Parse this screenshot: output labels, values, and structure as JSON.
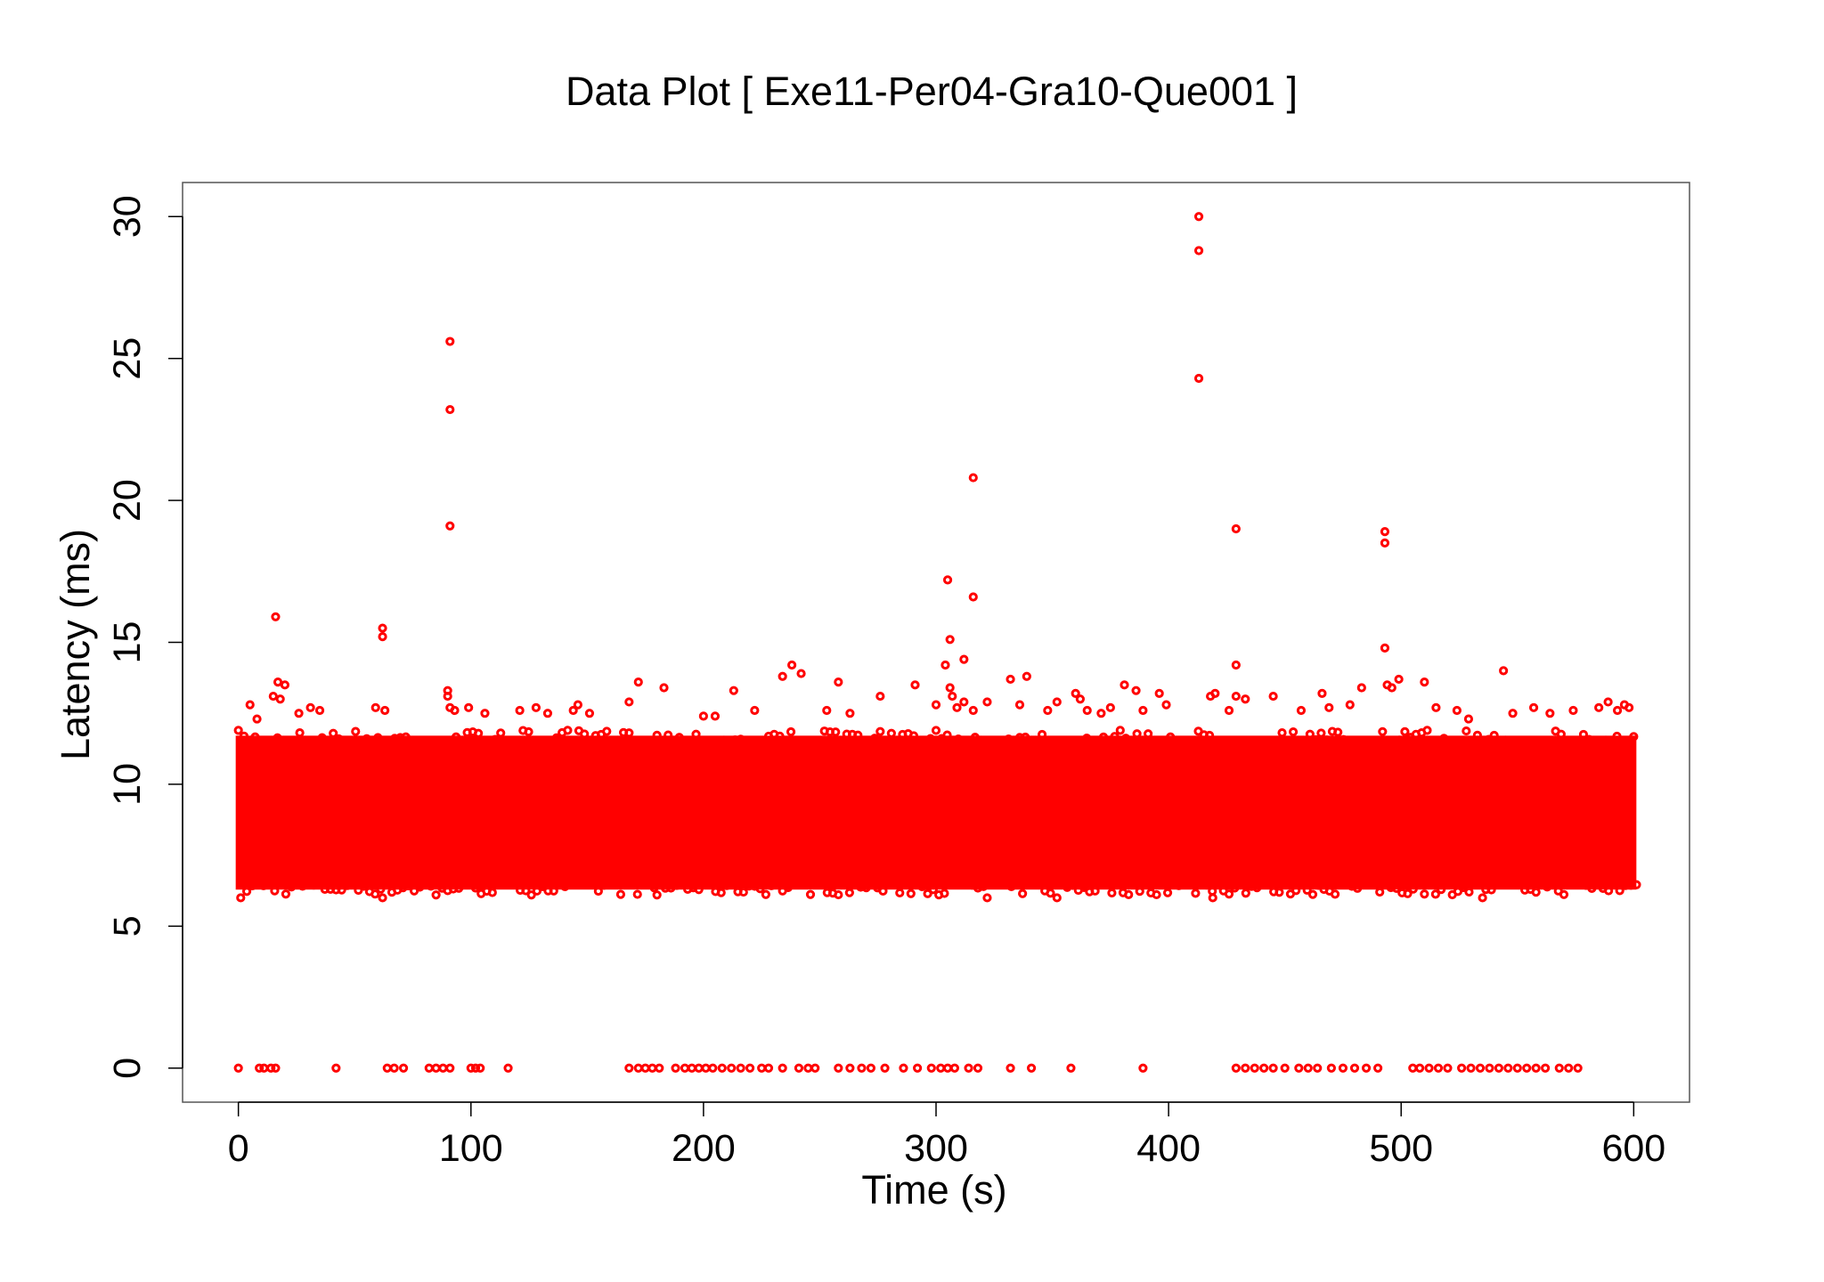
{
  "chart_data": {
    "type": "scatter",
    "title": "Data Plot [ Exe11-Per04-Gra10-Que001 ]",
    "xlabel": "Time (s)",
    "ylabel": "Latency (ms)",
    "xlim": [
      -24,
      624
    ],
    "ylim": [
      -1.2,
      31.2
    ],
    "xticks": [
      0,
      100,
      200,
      300,
      400,
      500,
      600
    ],
    "yticks": [
      0,
      5,
      10,
      15,
      20,
      25,
      30
    ],
    "xtick_labels": [
      "0",
      "100",
      "200",
      "300",
      "400",
      "500",
      "600"
    ],
    "ytick_labels": [
      "0",
      "5",
      "10",
      "15",
      "20",
      "25",
      "30"
    ],
    "grid": false,
    "marker": "open-circle",
    "color": "#ff0000",
    "dense_band": {
      "x_range": [
        0,
        600
      ],
      "y_range": [
        6.1,
        11.9
      ],
      "description": "continuous dense cluster of points"
    },
    "series": [
      {
        "points": [
          [
            0,
            0
          ],
          [
            9,
            0
          ],
          [
            11,
            0
          ],
          [
            14,
            0
          ],
          [
            16,
            0
          ],
          [
            42,
            0
          ],
          [
            64,
            0
          ],
          [
            67,
            0
          ],
          [
            71,
            0
          ],
          [
            82,
            0
          ],
          [
            85,
            0
          ],
          [
            88,
            0
          ],
          [
            91,
            0
          ],
          [
            100,
            0
          ],
          [
            102,
            0
          ],
          [
            104,
            0
          ],
          [
            116,
            0
          ],
          [
            168,
            0
          ],
          [
            172,
            0
          ],
          [
            175,
            0
          ],
          [
            178,
            0
          ],
          [
            181,
            0
          ],
          [
            188,
            0
          ],
          [
            192,
            0
          ],
          [
            195,
            0
          ],
          [
            198,
            0
          ],
          [
            201,
            0
          ],
          [
            204,
            0
          ],
          [
            208,
            0
          ],
          [
            212,
            0
          ],
          [
            216,
            0
          ],
          [
            220,
            0
          ],
          [
            225,
            0
          ],
          [
            228,
            0
          ],
          [
            234,
            0
          ],
          [
            241,
            0
          ],
          [
            245,
            0
          ],
          [
            248,
            0
          ],
          [
            258,
            0
          ],
          [
            263,
            0
          ],
          [
            268,
            0
          ],
          [
            272,
            0
          ],
          [
            278,
            0
          ],
          [
            286,
            0
          ],
          [
            292,
            0
          ],
          [
            298,
            0
          ],
          [
            302,
            0
          ],
          [
            305,
            0
          ],
          [
            308,
            0
          ],
          [
            314,
            0
          ],
          [
            318,
            0
          ],
          [
            332,
            0
          ],
          [
            341,
            0
          ],
          [
            358,
            0
          ],
          [
            389,
            0
          ],
          [
            429,
            0
          ],
          [
            433,
            0
          ],
          [
            437,
            0
          ],
          [
            441,
            0
          ],
          [
            445,
            0
          ],
          [
            450,
            0
          ],
          [
            456,
            0
          ],
          [
            460,
            0
          ],
          [
            464,
            0
          ],
          [
            470,
            0
          ],
          [
            475,
            0
          ],
          [
            480,
            0
          ],
          [
            485,
            0
          ],
          [
            490,
            0
          ],
          [
            505,
            0
          ],
          [
            508,
            0
          ],
          [
            512,
            0
          ],
          [
            516,
            0
          ],
          [
            520,
            0
          ],
          [
            526,
            0
          ],
          [
            530,
            0
          ],
          [
            534,
            0
          ],
          [
            538,
            0
          ],
          [
            542,
            0
          ],
          [
            546,
            0
          ],
          [
            550,
            0
          ],
          [
            554,
            0
          ],
          [
            558,
            0
          ],
          [
            562,
            0
          ],
          [
            568,
            0
          ],
          [
            572,
            0
          ],
          [
            576,
            0
          ],
          [
            1,
            6.0
          ],
          [
            62,
            6.0
          ],
          [
            85,
            6.1
          ],
          [
            180,
            6.1
          ],
          [
            322,
            6.0
          ],
          [
            352,
            6.0
          ],
          [
            419,
            6.0
          ],
          [
            535,
            6.0
          ],
          [
            5,
            12.8
          ],
          [
            8,
            12.3
          ],
          [
            15,
            13.1
          ],
          [
            17,
            13.6
          ],
          [
            18,
            13.0
          ],
          [
            20,
            13.5
          ],
          [
            26,
            12.5
          ],
          [
            31,
            12.7
          ],
          [
            35,
            12.6
          ],
          [
            59,
            12.7
          ],
          [
            63,
            12.6
          ],
          [
            90,
            13.1
          ],
          [
            90,
            13.3
          ],
          [
            91,
            12.7
          ],
          [
            93,
            12.6
          ],
          [
            99,
            12.7
          ],
          [
            106,
            12.5
          ],
          [
            121,
            12.6
          ],
          [
            128,
            12.7
          ],
          [
            133,
            12.5
          ],
          [
            144,
            12.6
          ],
          [
            146,
            12.8
          ],
          [
            151,
            12.5
          ],
          [
            168,
            12.9
          ],
          [
            172,
            13.6
          ],
          [
            183,
            13.4
          ],
          [
            200,
            12.4
          ],
          [
            205,
            12.4
          ],
          [
            213,
            13.3
          ],
          [
            222,
            12.6
          ],
          [
            234,
            13.8
          ],
          [
            238,
            14.2
          ],
          [
            242,
            13.9
          ],
          [
            253,
            12.6
          ],
          [
            258,
            13.6
          ],
          [
            263,
            12.5
          ],
          [
            276,
            13.1
          ],
          [
            291,
            13.5
          ],
          [
            300,
            12.8
          ],
          [
            304,
            14.2
          ],
          [
            306,
            13.4
          ],
          [
            307,
            13.1
          ],
          [
            309,
            12.7
          ],
          [
            312,
            12.9
          ],
          [
            316,
            12.6
          ],
          [
            322,
            12.9
          ],
          [
            332,
            13.7
          ],
          [
            336,
            12.8
          ],
          [
            339,
            13.8
          ],
          [
            348,
            12.6
          ],
          [
            352,
            12.9
          ],
          [
            360,
            13.2
          ],
          [
            362,
            13.0
          ],
          [
            365,
            12.6
          ],
          [
            371,
            12.5
          ],
          [
            375,
            12.7
          ],
          [
            381,
            13.5
          ],
          [
            386,
            13.3
          ],
          [
            389,
            12.6
          ],
          [
            396,
            13.2
          ],
          [
            399,
            12.8
          ],
          [
            418,
            13.1
          ],
          [
            420,
            13.2
          ],
          [
            426,
            12.6
          ],
          [
            429,
            13.1
          ],
          [
            433,
            13.0
          ],
          [
            445,
            13.1
          ],
          [
            457,
            12.6
          ],
          [
            466,
            13.2
          ],
          [
            469,
            12.7
          ],
          [
            478,
            12.8
          ],
          [
            483,
            13.4
          ],
          [
            494,
            13.5
          ],
          [
            496,
            13.4
          ],
          [
            499,
            13.7
          ],
          [
            510,
            13.6
          ],
          [
            515,
            12.7
          ],
          [
            524,
            12.6
          ],
          [
            529,
            12.3
          ],
          [
            548,
            12.5
          ],
          [
            557,
            12.7
          ],
          [
            564,
            12.5
          ],
          [
            574,
            12.6
          ],
          [
            585,
            12.7
          ],
          [
            589,
            12.9
          ],
          [
            593,
            12.6
          ],
          [
            596,
            12.8
          ],
          [
            598,
            12.7
          ],
          [
            16,
            15.9
          ],
          [
            62,
            15.5
          ],
          [
            62,
            15.2
          ],
          [
            91,
            19.1
          ],
          [
            91,
            23.2
          ],
          [
            91,
            25.6
          ],
          [
            305,
            17.2
          ],
          [
            306,
            15.1
          ],
          [
            312,
            14.4
          ],
          [
            316,
            16.6
          ],
          [
            316,
            20.8
          ],
          [
            413,
            30.0
          ],
          [
            413,
            28.8
          ],
          [
            413,
            24.3
          ],
          [
            429,
            19.0
          ],
          [
            429,
            14.2
          ],
          [
            493,
            18.9
          ],
          [
            493,
            18.5
          ],
          [
            493,
            14.8
          ],
          [
            544,
            14.0
          ]
        ]
      }
    ]
  }
}
